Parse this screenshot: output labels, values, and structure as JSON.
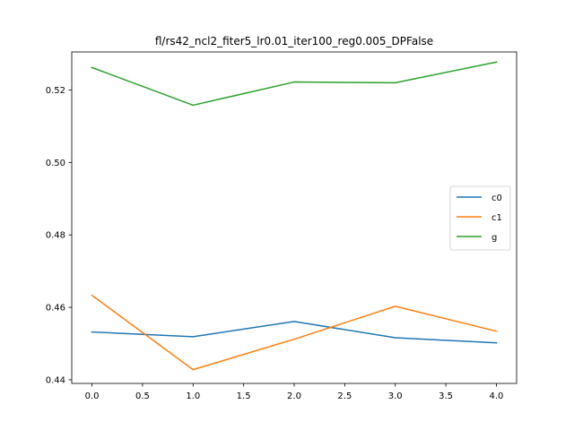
{
  "chart_data": {
    "type": "line",
    "title": "fl/rs42_ncl2_fiter5_lr0.01_iter100_reg0.005_DPFalse",
    "xlabel": "",
    "ylabel": "",
    "x": [
      0,
      1,
      2,
      3,
      4
    ],
    "xlim": [
      -0.2,
      4.2
    ],
    "ylim": [
      0.439,
      0.5305
    ],
    "xticks": [
      0.0,
      0.5,
      1.0,
      1.5,
      2.0,
      2.5,
      3.0,
      3.5,
      4.0
    ],
    "xtick_labels": [
      "0.0",
      "0.5",
      "1.0",
      "1.5",
      "2.0",
      "2.5",
      "3.0",
      "3.5",
      "4.0"
    ],
    "yticks": [
      0.44,
      0.46,
      0.48,
      0.5,
      0.52
    ],
    "ytick_labels": [
      "0.44",
      "0.46",
      "0.48",
      "0.50",
      "0.52"
    ],
    "grid": false,
    "legend_position": "center-right",
    "series": [
      {
        "name": "c0",
        "color": "#1f77b4",
        "values": [
          0.4532,
          0.4519,
          0.4561,
          0.4516,
          0.4502
        ]
      },
      {
        "name": "c1",
        "color": "#ff7f0e",
        "values": [
          0.4633,
          0.4428,
          0.4512,
          0.4603,
          0.4534
        ]
      },
      {
        "name": "g",
        "color": "#2ca02c",
        "values": [
          0.5262,
          0.5158,
          0.5222,
          0.522,
          0.5277
        ]
      }
    ]
  }
}
